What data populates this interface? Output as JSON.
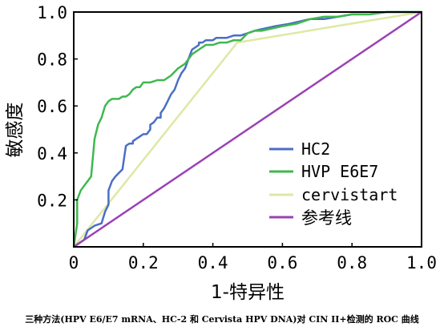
{
  "chart_data": {
    "type": "line",
    "title": "",
    "xlabel": "1-特异性",
    "ylabel": "敏感度",
    "xlim": [
      0,
      1
    ],
    "ylim": [
      0,
      1
    ],
    "xticks": [
      "0",
      "0.2",
      "0.4",
      "0.6",
      "0.8",
      "1.0"
    ],
    "yticks": [
      "0.2",
      "0.4",
      "0.6",
      "0.8",
      "1.0"
    ],
    "grid": false,
    "legend_position": "bottom-right",
    "series": [
      {
        "name": "HC2",
        "color": "#4a6fc4",
        "x": [
          0.0,
          0.03,
          0.04,
          0.06,
          0.08,
          0.09,
          0.1,
          0.1,
          0.11,
          0.12,
          0.14,
          0.15,
          0.16,
          0.17,
          0.17,
          0.18,
          0.19,
          0.2,
          0.21,
          0.22,
          0.22,
          0.23,
          0.24,
          0.25,
          0.25,
          0.26,
          0.27,
          0.28,
          0.29,
          0.3,
          0.31,
          0.32,
          0.33,
          0.34,
          0.35,
          0.36,
          0.36,
          0.37,
          0.38,
          0.4,
          0.41,
          0.42,
          0.44,
          0.46,
          0.48,
          0.5,
          0.52,
          0.55,
          0.58,
          0.62,
          0.65,
          0.68,
          0.72,
          0.76,
          0.8,
          0.85,
          0.9,
          0.95,
          1.0
        ],
        "y": [
          0.0,
          0.03,
          0.07,
          0.09,
          0.1,
          0.15,
          0.18,
          0.24,
          0.28,
          0.3,
          0.33,
          0.43,
          0.44,
          0.44,
          0.45,
          0.46,
          0.47,
          0.48,
          0.48,
          0.5,
          0.52,
          0.53,
          0.55,
          0.55,
          0.57,
          0.59,
          0.62,
          0.65,
          0.67,
          0.71,
          0.74,
          0.76,
          0.8,
          0.84,
          0.85,
          0.86,
          0.87,
          0.87,
          0.88,
          0.88,
          0.89,
          0.89,
          0.89,
          0.9,
          0.9,
          0.91,
          0.92,
          0.93,
          0.94,
          0.95,
          0.96,
          0.97,
          0.97,
          0.98,
          0.99,
          0.99,
          1.0,
          1.0,
          1.0
        ]
      },
      {
        "name": "HVP E6E7",
        "color": "#3fb84f",
        "x": [
          0.0,
          0.01,
          0.01,
          0.02,
          0.03,
          0.04,
          0.05,
          0.06,
          0.07,
          0.08,
          0.09,
          0.1,
          0.11,
          0.12,
          0.13,
          0.14,
          0.15,
          0.16,
          0.17,
          0.18,
          0.19,
          0.2,
          0.22,
          0.24,
          0.26,
          0.28,
          0.3,
          0.32,
          0.34,
          0.36,
          0.38,
          0.4,
          0.42,
          0.44,
          0.46,
          0.48,
          0.5,
          0.52,
          0.54,
          0.57,
          0.6,
          0.64,
          0.68,
          0.72,
          0.76,
          0.8,
          0.85,
          0.9,
          0.95,
          1.0
        ],
        "y": [
          0.0,
          0.1,
          0.2,
          0.24,
          0.26,
          0.28,
          0.3,
          0.46,
          0.52,
          0.55,
          0.6,
          0.62,
          0.63,
          0.63,
          0.63,
          0.64,
          0.64,
          0.65,
          0.67,
          0.68,
          0.68,
          0.7,
          0.7,
          0.71,
          0.71,
          0.73,
          0.76,
          0.78,
          0.82,
          0.84,
          0.86,
          0.86,
          0.87,
          0.87,
          0.88,
          0.88,
          0.91,
          0.92,
          0.92,
          0.93,
          0.94,
          0.95,
          0.97,
          0.98,
          0.98,
          0.99,
          0.99,
          1.0,
          1.0,
          1.0
        ]
      },
      {
        "name": "cervistart",
        "color": "#dde9a4",
        "x": [
          0.0,
          0.47,
          1.0
        ],
        "y": [
          0.0,
          0.87,
          1.0
        ]
      },
      {
        "name": "参考线",
        "color": "#9a42b3",
        "x": [
          0.0,
          1.0
        ],
        "y": [
          0.0,
          1.0
        ]
      }
    ]
  },
  "caption": "三种方法(HPV E6/E7 mRNA、HC-2 和 Cervista HPV DNA)对 CIN II+检测的 ROC 曲线"
}
